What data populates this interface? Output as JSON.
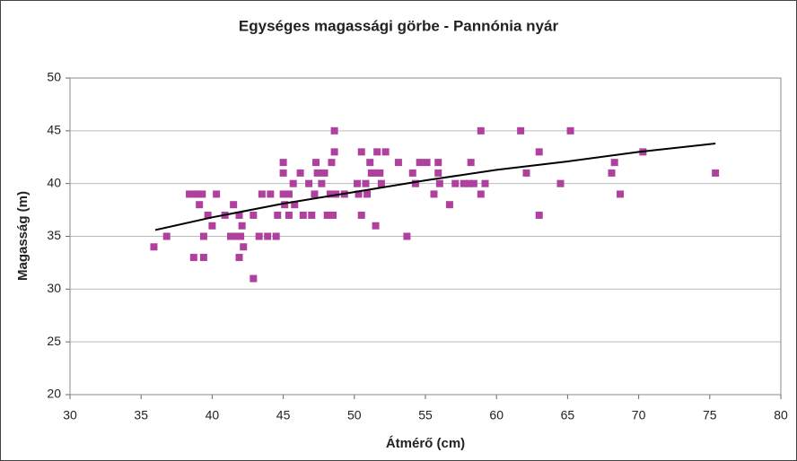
{
  "chart_data": {
    "type": "scatter",
    "title": "Egységes magassági görbe - Pannónia nyár",
    "xlabel": "Átmérő (cm)",
    "ylabel": "Magasság (m)",
    "xlim": [
      30,
      80
    ],
    "xticks": [
      30,
      35,
      40,
      45,
      50,
      55,
      60,
      65,
      70,
      75,
      80
    ],
    "ylim": [
      20,
      50
    ],
    "yticks": [
      20,
      25,
      30,
      35,
      40,
      45,
      50
    ],
    "grid": true,
    "series": [
      {
        "color": "#b0409e",
        "x": [
          35.9,
          36.8,
          38.4,
          38.7,
          39.0,
          39.3,
          38.7,
          39.4,
          39.1,
          39.4,
          39.7,
          40.0,
          40.3,
          40.9,
          41.3,
          41.5,
          41.7,
          41.9,
          41.9,
          42.1,
          42.2,
          42.0,
          42.9,
          42.9,
          43.3,
          43.5,
          43.9,
          44.1,
          44.5,
          44.6,
          45.0,
          45.0,
          45.0,
          45.1,
          45.4,
          45.4,
          45.7,
          45.8,
          46.2,
          46.4,
          46.8,
          47.0,
          47.2,
          47.3,
          47.4,
          47.7,
          47.9,
          48.1,
          48.3,
          48.4,
          48.5,
          48.6,
          48.6,
          48.7,
          49.3,
          50.2,
          50.3,
          50.5,
          50.5,
          50.8,
          50.9,
          51.1,
          51.2,
          51.4,
          51.5,
          51.6,
          51.8,
          51.9,
          52.2,
          53.1,
          53.7,
          54.1,
          54.3,
          54.6,
          55.1,
          55.6,
          55.9,
          55.9,
          56.0,
          56.7,
          57.1,
          57.7,
          58.1,
          58.2,
          58.4,
          58.9,
          58.9,
          59.2,
          61.7,
          62.1,
          63.0,
          63.0,
          64.5,
          65.2,
          68.1,
          68.3,
          68.7,
          70.3,
          75.4
        ],
        "values": [
          34,
          35,
          39,
          39,
          39,
          39,
          33,
          33,
          38,
          35,
          37,
          36,
          39,
          37,
          35,
          38,
          35,
          37,
          33,
          36,
          34,
          35,
          31,
          37,
          35,
          39,
          35,
          39,
          35,
          37,
          42,
          41,
          39,
          38,
          39,
          37,
          40,
          38,
          41,
          37,
          40,
          37,
          39,
          42,
          41,
          40,
          41,
          37,
          39,
          42,
          37,
          45,
          43,
          39,
          39,
          40,
          39,
          43,
          37,
          40,
          39,
          42,
          41,
          41,
          36,
          43,
          41,
          40,
          43,
          42,
          35,
          41,
          40,
          42,
          42,
          39,
          42,
          41,
          40,
          38,
          40,
          40,
          40,
          42,
          40,
          45,
          39,
          40,
          45,
          41,
          43,
          37,
          40,
          45,
          41,
          42,
          39,
          43,
          41
        ]
      }
    ],
    "trendline": {
      "color": "#000000",
      "x": [
        36,
        40,
        45,
        50,
        55,
        60,
        65,
        70,
        75.4
      ],
      "values": [
        35.6,
        36.8,
        38.1,
        39.2,
        40.3,
        41.3,
        42.1,
        43.0,
        43.8
      ]
    }
  }
}
